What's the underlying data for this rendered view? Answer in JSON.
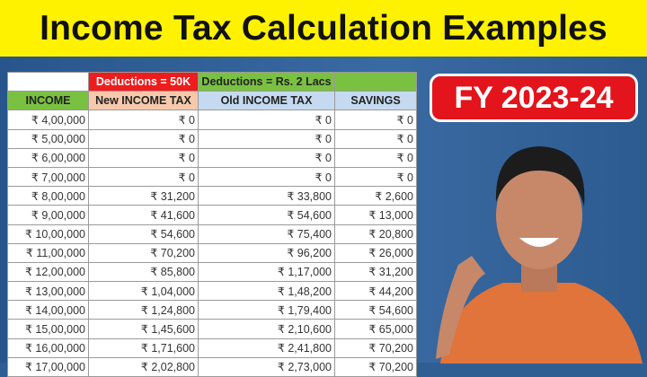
{
  "title": "Income Tax Calculation Examples",
  "badge": "FY 2023-24",
  "colors": {
    "banner": "#fff200",
    "background": "#2f5e93",
    "badge": "#e3141b"
  },
  "table": {
    "group_headers": [
      "",
      "Deductions = 50K",
      "Deductions = Rs. 2 Lacs",
      ""
    ],
    "headers": [
      "INCOME",
      "New INCOME TAX",
      "Old INCOME TAX",
      "SAVINGS"
    ],
    "rows": [
      [
        "₹ 4,00,000",
        "₹ 0",
        "₹ 0",
        "₹ 0"
      ],
      [
        "₹ 5,00,000",
        "₹ 0",
        "₹ 0",
        "₹ 0"
      ],
      [
        "₹ 6,00,000",
        "₹ 0",
        "₹ 0",
        "₹ 0"
      ],
      [
        "₹ 7,00,000",
        "₹ 0",
        "₹ 0",
        "₹ 0"
      ],
      [
        "₹ 8,00,000",
        "₹ 31,200",
        "₹ 33,800",
        "₹ 2,600"
      ],
      [
        "₹ 9,00,000",
        "₹ 41,600",
        "₹ 54,600",
        "₹ 13,000"
      ],
      [
        "₹ 10,00,000",
        "₹ 54,600",
        "₹ 75,400",
        "₹ 20,800"
      ],
      [
        "₹ 11,00,000",
        "₹ 70,200",
        "₹ 96,200",
        "₹ 26,000"
      ],
      [
        "₹ 12,00,000",
        "₹ 85,800",
        "₹ 1,17,000",
        "₹ 31,200"
      ],
      [
        "₹ 13,00,000",
        "₹ 1,04,000",
        "₹ 1,48,200",
        "₹ 44,200"
      ],
      [
        "₹ 14,00,000",
        "₹ 1,24,800",
        "₹ 1,79,400",
        "₹ 54,600"
      ],
      [
        "₹ 15,00,000",
        "₹ 1,45,600",
        "₹ 2,10,600",
        "₹ 65,000"
      ],
      [
        "₹ 16,00,000",
        "₹ 1,71,600",
        "₹ 2,41,800",
        "₹ 70,200"
      ],
      [
        "₹ 17,00,000",
        "₹ 2,02,800",
        "₹ 2,73,000",
        "₹ 70,200"
      ]
    ]
  }
}
